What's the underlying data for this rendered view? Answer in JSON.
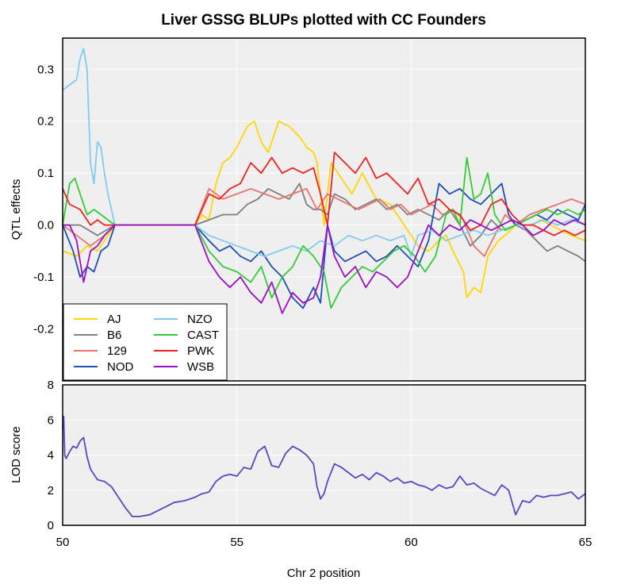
{
  "chart_data": [
    {
      "type": "line",
      "title": "Liver GSSG BLUPs plotted with CC Founders",
      "xlabel": "",
      "ylabel": "QTL effects",
      "xlim": [
        50,
        65
      ],
      "ylim": [
        -0.3,
        0.36
      ],
      "yticks": [
        0.3,
        0.2,
        0.1,
        0.0,
        -0.1,
        -0.2
      ],
      "ytick_labels": [
        "0.3",
        "0.2",
        "0.1",
        "0.0",
        "-0.1",
        "-0.2"
      ],
      "grid": true,
      "legend_position": "bottom-left",
      "legend_columns": 2,
      "series": [
        {
          "name": "AJ",
          "color": "#FFD700",
          "x": [
            50.0,
            50.4,
            50.7,
            51.0,
            51.2,
            51.5,
            53.8,
            54.0,
            54.2,
            54.4,
            54.6,
            54.8,
            55.0,
            55.3,
            55.5,
            55.7,
            55.9,
            56.2,
            56.5,
            56.8,
            57.0,
            57.2,
            57.3,
            57.5,
            57.7,
            58.0,
            58.3,
            58.6,
            59.0,
            59.4,
            59.8,
            60.2,
            60.5,
            60.8,
            61.0,
            61.2,
            61.5,
            61.6,
            61.8,
            62.0,
            62.2,
            62.5,
            62.7,
            63.0,
            63.3,
            63.5,
            63.7,
            64.0,
            64.3,
            64.6,
            65.0
          ],
          "y": [
            -0.05,
            -0.06,
            -0.04,
            -0.05,
            -0.03,
            0.0,
            0.0,
            0.02,
            0.01,
            0.08,
            0.12,
            0.13,
            0.15,
            0.19,
            0.2,
            0.16,
            0.14,
            0.2,
            0.19,
            0.17,
            0.15,
            0.14,
            0.12,
            0.0,
            0.12,
            0.09,
            0.06,
            0.1,
            0.05,
            0.04,
            0.0,
            -0.04,
            -0.05,
            -0.03,
            -0.02,
            -0.05,
            -0.09,
            -0.14,
            -0.12,
            -0.13,
            -0.06,
            -0.03,
            -0.02,
            0.0,
            0.0,
            0.0,
            0.01,
            0.0,
            -0.01,
            -0.02,
            -0.03
          ]
        },
        {
          "name": "B6",
          "color": "#7F7F7F",
          "x": [
            50.0,
            50.5,
            51.0,
            51.5,
            53.8,
            54.2,
            54.6,
            55.0,
            55.3,
            55.6,
            55.9,
            56.2,
            56.5,
            56.8,
            57.0,
            57.2,
            57.4,
            57.6,
            57.8,
            58.1,
            58.4,
            58.7,
            59.0,
            59.3,
            59.6,
            59.9,
            60.2,
            60.5,
            60.8,
            61.1,
            61.4,
            61.7,
            62.0,
            62.3,
            62.6,
            63.0,
            63.3,
            63.6,
            63.9,
            64.2,
            64.5,
            64.8,
            65.0
          ],
          "y": [
            0.0,
            0.0,
            -0.02,
            0.0,
            0.0,
            0.01,
            0.02,
            0.02,
            0.04,
            0.05,
            0.07,
            0.06,
            0.05,
            0.08,
            0.04,
            0.03,
            0.03,
            0.02,
            0.06,
            0.05,
            0.03,
            0.04,
            0.05,
            0.03,
            0.04,
            0.02,
            0.03,
            0.02,
            0.01,
            0.03,
            0.0,
            -0.04,
            -0.02,
            0.01,
            -0.01,
            0.0,
            -0.01,
            -0.03,
            -0.05,
            -0.04,
            -0.05,
            -0.06,
            -0.07
          ]
        },
        {
          "name": "129",
          "color": "#E8736E",
          "x": [
            50.0,
            50.4,
            50.8,
            51.2,
            51.5,
            53.8,
            54.2,
            54.6,
            55.0,
            55.4,
            55.8,
            56.2,
            56.6,
            57.0,
            57.3,
            57.6,
            57.9,
            58.2,
            58.5,
            58.8,
            59.1,
            59.4,
            59.7,
            60.0,
            60.3,
            60.6,
            60.9,
            61.2,
            61.5,
            61.8,
            62.1,
            62.4,
            62.7,
            63.0,
            63.4,
            63.8,
            64.2,
            64.6,
            65.0
          ],
          "y": [
            0.0,
            -0.02,
            -0.04,
            -0.02,
            0.0,
            0.0,
            0.07,
            0.05,
            0.06,
            0.07,
            0.06,
            0.05,
            0.06,
            0.07,
            0.03,
            0.06,
            0.05,
            0.04,
            0.03,
            0.04,
            0.05,
            0.03,
            0.04,
            0.02,
            0.03,
            0.04,
            0.02,
            0.03,
            0.01,
            -0.04,
            -0.06,
            -0.02,
            0.02,
            0.0,
            0.02,
            0.03,
            0.04,
            0.05,
            0.04
          ]
        },
        {
          "name": "NOD",
          "color": "#1F4FB4",
          "x": [
            50.0,
            50.3,
            50.5,
            50.7,
            50.9,
            51.1,
            51.3,
            51.5,
            53.8,
            54.2,
            54.5,
            54.8,
            55.1,
            55.4,
            55.7,
            56.0,
            56.3,
            56.6,
            56.9,
            57.2,
            57.4,
            57.6,
            57.8,
            58.1,
            58.4,
            58.7,
            59.0,
            59.3,
            59.6,
            59.9,
            60.2,
            60.5,
            60.8,
            61.1,
            61.4,
            61.7,
            62.0,
            62.3,
            62.6,
            62.8,
            63.0,
            63.3,
            63.6,
            63.9,
            64.2,
            64.5,
            64.8,
            65.0
          ],
          "y": [
            0.0,
            -0.05,
            -0.1,
            -0.08,
            -0.09,
            -0.05,
            -0.04,
            0.0,
            0.0,
            -0.03,
            -0.05,
            -0.04,
            -0.06,
            -0.07,
            -0.05,
            -0.08,
            -0.1,
            -0.14,
            -0.16,
            -0.12,
            -0.15,
            0.0,
            -0.05,
            -0.07,
            -0.06,
            -0.05,
            -0.07,
            -0.06,
            -0.04,
            -0.06,
            -0.08,
            -0.03,
            0.08,
            0.06,
            0.07,
            0.05,
            0.04,
            0.06,
            0.08,
            0.02,
            0.0,
            0.01,
            0.02,
            0.01,
            0.03,
            0.02,
            0.01,
            0.04
          ]
        },
        {
          "name": "NZO",
          "color": "#7FCCF0",
          "x": [
            50.0,
            50.2,
            50.4,
            50.5,
            50.6,
            50.7,
            50.8,
            50.9,
            51.0,
            51.1,
            51.2,
            51.3,
            51.5,
            53.8,
            54.2,
            54.6,
            55.0,
            55.4,
            55.8,
            56.2,
            56.6,
            57.0,
            57.4,
            57.8,
            58.2,
            58.6,
            59.0,
            59.4,
            59.8,
            60.0,
            60.2,
            60.6,
            61.0,
            61.4,
            61.8,
            62.2,
            62.6,
            63.0,
            63.4,
            63.8,
            64.2,
            64.6,
            65.0
          ],
          "y": [
            0.26,
            0.27,
            0.28,
            0.32,
            0.34,
            0.3,
            0.12,
            0.08,
            0.16,
            0.15,
            0.1,
            0.06,
            0.0,
            0.0,
            -0.02,
            -0.03,
            -0.04,
            -0.05,
            -0.06,
            -0.05,
            -0.04,
            -0.05,
            -0.03,
            -0.04,
            -0.02,
            -0.03,
            -0.02,
            -0.03,
            -0.02,
            -0.06,
            -0.02,
            -0.01,
            -0.03,
            -0.02,
            -0.01,
            -0.02,
            -0.01,
            0.0,
            0.0,
            0.01,
            0.0,
            0.01,
            0.0
          ]
        },
        {
          "name": "CAST",
          "color": "#33CC33",
          "x": [
            50.0,
            50.2,
            50.35,
            50.5,
            50.7,
            50.9,
            51.1,
            51.3,
            51.5,
            53.8,
            54.2,
            54.6,
            55.0,
            55.4,
            55.7,
            56.0,
            56.3,
            56.6,
            56.9,
            57.2,
            57.5,
            57.7,
            58.0,
            58.3,
            58.6,
            58.9,
            59.2,
            59.5,
            59.8,
            60.1,
            60.4,
            60.7,
            61.0,
            61.2,
            61.4,
            61.6,
            61.8,
            62.0,
            62.2,
            62.4,
            62.7,
            63.0,
            63.3,
            63.6,
            63.9,
            64.2,
            64.5,
            64.8,
            65.0
          ],
          "y": [
            0.0,
            0.08,
            0.09,
            0.06,
            0.02,
            0.03,
            0.02,
            0.01,
            0.0,
            0.0,
            -0.05,
            -0.08,
            -0.09,
            -0.11,
            -0.08,
            -0.14,
            -0.1,
            -0.08,
            -0.04,
            -0.06,
            -0.09,
            -0.16,
            -0.12,
            -0.1,
            -0.08,
            -0.09,
            -0.07,
            -0.05,
            -0.04,
            -0.06,
            -0.09,
            -0.06,
            0.02,
            0.03,
            0.0,
            0.13,
            0.05,
            0.06,
            0.1,
            0.02,
            -0.01,
            0.0,
            0.01,
            0.02,
            0.03,
            0.02,
            0.03,
            0.02,
            0.03
          ]
        },
        {
          "name": "PWK",
          "color": "#EE2222",
          "x": [
            50.0,
            50.2,
            50.5,
            50.8,
            51.0,
            51.2,
            51.5,
            53.8,
            54.2,
            54.5,
            54.8,
            55.1,
            55.4,
            55.7,
            56.0,
            56.3,
            56.6,
            56.9,
            57.2,
            57.4,
            57.6,
            57.8,
            58.1,
            58.4,
            58.7,
            59.0,
            59.3,
            59.6,
            59.9,
            60.2,
            60.5,
            60.8,
            61.1,
            61.4,
            61.7,
            62.0,
            62.3,
            62.6,
            62.9,
            63.2,
            63.5,
            63.8,
            64.1,
            64.4,
            64.7,
            65.0
          ],
          "y": [
            0.07,
            0.04,
            0.03,
            0.0,
            0.01,
            0.0,
            0.0,
            0.0,
            0.06,
            0.05,
            0.07,
            0.08,
            0.12,
            0.1,
            0.13,
            0.1,
            0.11,
            0.1,
            0.11,
            0.06,
            0.0,
            0.14,
            0.12,
            0.1,
            0.13,
            0.09,
            0.1,
            0.08,
            0.06,
            0.09,
            0.04,
            0.05,
            0.03,
            0.02,
            -0.01,
            0.0,
            0.04,
            0.05,
            0.02,
            0.0,
            0.0,
            -0.01,
            -0.02,
            -0.01,
            -0.02,
            -0.01
          ]
        },
        {
          "name": "WSB",
          "color": "#9A0FC4",
          "x": [
            50.0,
            50.2,
            50.4,
            50.6,
            50.8,
            51.0,
            51.2,
            51.5,
            53.8,
            54.2,
            54.5,
            54.8,
            55.1,
            55.4,
            55.7,
            56.0,
            56.3,
            56.6,
            56.9,
            57.2,
            57.4,
            57.6,
            57.8,
            58.1,
            58.4,
            58.7,
            59.0,
            59.3,
            59.6,
            59.9,
            60.2,
            60.5,
            60.8,
            61.1,
            61.4,
            61.7,
            62.0,
            62.3,
            62.6,
            62.9,
            63.2,
            63.5,
            63.8,
            64.1,
            64.4,
            64.7,
            65.0
          ],
          "y": [
            0.0,
            0.0,
            -0.03,
            -0.11,
            -0.05,
            -0.04,
            -0.02,
            0.0,
            0.0,
            -0.07,
            -0.1,
            -0.12,
            -0.1,
            -0.13,
            -0.15,
            -0.11,
            -0.17,
            -0.13,
            -0.15,
            -0.14,
            -0.1,
            0.0,
            -0.06,
            -0.1,
            -0.08,
            -0.12,
            -0.09,
            -0.1,
            -0.12,
            -0.1,
            -0.05,
            0.0,
            -0.02,
            0.0,
            -0.01,
            0.01,
            0.0,
            -0.01,
            0.0,
            0.01,
            0.0,
            -0.02,
            -0.01,
            0.01,
            0.0,
            0.01,
            0.0
          ]
        }
      ]
    },
    {
      "type": "line",
      "title": "",
      "xlabel": "Chr 2 position",
      "ylabel": "LOD score",
      "xlim": [
        50,
        65
      ],
      "ylim": [
        0,
        8
      ],
      "xticks": [
        50,
        55,
        60,
        65
      ],
      "xtick_labels": [
        "50",
        "55",
        "60",
        "65"
      ],
      "yticks": [
        0,
        2,
        4,
        6,
        8
      ],
      "ytick_labels": [
        "0",
        "2",
        "4",
        "6",
        "8"
      ],
      "grid": true,
      "series": [
        {
          "name": "",
          "color": "#5B45C0",
          "x": [
            50.0,
            50.03,
            50.06,
            50.1,
            50.2,
            50.3,
            50.4,
            50.5,
            50.6,
            50.7,
            50.8,
            51.0,
            51.2,
            51.4,
            51.6,
            51.8,
            52.0,
            52.2,
            52.5,
            52.8,
            53.0,
            53.2,
            53.5,
            53.8,
            54.0,
            54.2,
            54.4,
            54.6,
            54.8,
            55.0,
            55.2,
            55.4,
            55.6,
            55.8,
            56.0,
            56.2,
            56.4,
            56.6,
            56.8,
            57.0,
            57.2,
            57.3,
            57.4,
            57.5,
            57.6,
            57.8,
            58.0,
            58.2,
            58.4,
            58.6,
            58.8,
            59.0,
            59.2,
            59.4,
            59.6,
            59.8,
            60.0,
            60.2,
            60.4,
            60.6,
            60.8,
            61.0,
            61.2,
            61.4,
            61.6,
            61.8,
            62.0,
            62.2,
            62.4,
            62.6,
            62.8,
            63.0,
            63.2,
            63.4,
            63.6,
            63.8,
            64.0,
            64.2,
            64.4,
            64.6,
            64.8,
            65.0
          ],
          "y": [
            5.5,
            6.2,
            4.0,
            3.8,
            4.2,
            4.5,
            4.4,
            4.8,
            5.0,
            3.9,
            3.2,
            2.6,
            2.5,
            2.2,
            1.6,
            1.0,
            0.5,
            0.5,
            0.6,
            0.9,
            1.1,
            1.3,
            1.4,
            1.6,
            1.8,
            1.9,
            2.5,
            2.8,
            2.9,
            2.8,
            3.3,
            3.2,
            4.2,
            4.5,
            3.4,
            3.3,
            4.1,
            4.5,
            4.3,
            4.0,
            3.5,
            2.2,
            1.5,
            1.8,
            2.5,
            3.5,
            3.3,
            3.0,
            2.7,
            2.9,
            2.6,
            3.0,
            2.8,
            2.5,
            2.7,
            2.4,
            2.5,
            2.3,
            2.2,
            2.0,
            2.3,
            2.1,
            2.2,
            2.8,
            2.3,
            2.4,
            2.1,
            1.9,
            1.7,
            2.3,
            2.0,
            0.6,
            1.4,
            1.3,
            1.7,
            1.6,
            1.7,
            1.7,
            1.8,
            1.9,
            1.5,
            1.8
          ]
        }
      ]
    }
  ]
}
